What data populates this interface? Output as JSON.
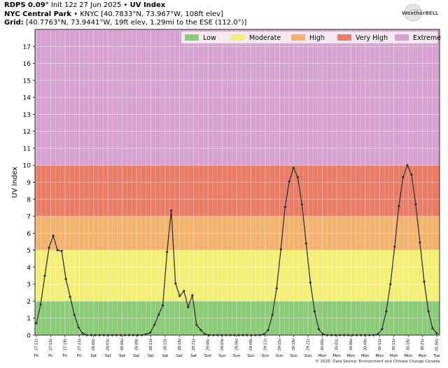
{
  "header": {
    "line1_model": "RDPS 0.09°",
    "line1_init": "Init 12z 27 Jun 2025",
    "line1_sep": "•",
    "line1_product": "UV Index",
    "line2_station": "NYC Central Park",
    "line2_detail": "• KNYC [40.7833°N, 73.967°W, 108ft elev]",
    "line3_label": "Grid:",
    "line3_detail": "[40.7763°N, 73.9441°W, 19ft elev, 1.29mi to the ESE (112.0°)]"
  },
  "logo": {
    "text": "WeatherBELL",
    "icon": "weatherbell-logo"
  },
  "credit": "© 2025. Data Source: Environment and Climate Change Canada.",
  "chart_data": {
    "type": "line",
    "ylabel": "UV Index",
    "ylim": [
      0,
      18
    ],
    "yticks": [
      0,
      1,
      2,
      3,
      4,
      5,
      6,
      7,
      8,
      9,
      10,
      11,
      12,
      13,
      14,
      15,
      16,
      17
    ],
    "grid": true,
    "legend_position": "top-right",
    "bands": [
      {
        "name": "Low",
        "from": 0,
        "to": 2,
        "color": "#8ccb78"
      },
      {
        "name": "Moderate",
        "from": 2,
        "to": 5,
        "color": "#f4ef76"
      },
      {
        "name": "High",
        "from": 5,
        "to": 7,
        "color": "#f2b36e"
      },
      {
        "name": "Very High",
        "from": 7,
        "to": 10,
        "color": "#ea7d66"
      },
      {
        "name": "Extreme",
        "from": 10,
        "to": 18,
        "color": "#d6a3d0"
      }
    ],
    "line_color": "#333333",
    "x_tick_labels": [
      [
        "27-12z",
        "Fri"
      ],
      [
        "27-15z",
        "Fri"
      ],
      [
        "27-18z",
        "Fri"
      ],
      [
        "27-21z",
        "Fri"
      ],
      [
        "28-00z",
        "Sat"
      ],
      [
        "28-03z",
        "Sat"
      ],
      [
        "28-06z",
        "Sat"
      ],
      [
        "28-09z",
        "Sat"
      ],
      [
        "28-12z",
        "Sat"
      ],
      [
        "28-15z",
        "Sat"
      ],
      [
        "28-18z",
        "Sat"
      ],
      [
        "28-21z",
        "Sat"
      ],
      [
        "29-00z",
        "Sun"
      ],
      [
        "29-03z",
        "Sun"
      ],
      [
        "29-06z",
        "Sun"
      ],
      [
        "29-09z",
        "Sun"
      ],
      [
        "29-12z",
        "Sun"
      ],
      [
        "29-15z",
        "Sun"
      ],
      [
        "29-18z",
        "Sun"
      ],
      [
        "29-21z",
        "Sun"
      ],
      [
        "30-00z",
        "Mon"
      ],
      [
        "30-03z",
        "Mon"
      ],
      [
        "30-06z",
        "Mon"
      ],
      [
        "30-09z",
        "Mon"
      ],
      [
        "30-12z",
        "Mon"
      ],
      [
        "30-15z",
        "Mon"
      ],
      [
        "30-18z",
        "Mon"
      ],
      [
        "30-21z",
        "Mon"
      ],
      [
        "01-00z",
        "Tue"
      ]
    ],
    "series": [
      {
        "values": [
          0.7,
          1.8,
          3.5,
          5.15,
          5.85,
          5.0,
          4.95,
          3.3,
          2.25,
          1.2,
          0.45,
          0.1,
          0,
          0,
          0,
          0,
          0,
          0,
          0,
          0,
          0,
          0,
          0,
          0,
          0,
          0,
          0.05,
          0.15,
          0.6,
          1.2,
          1.75,
          4.9,
          7.35,
          3.05,
          2.3,
          2.6,
          1.65,
          2.35,
          0.6,
          0.3,
          0.05,
          0,
          0,
          0,
          0,
          0,
          0,
          0,
          0,
          0,
          0,
          0,
          0,
          0,
          0.05,
          0.3,
          1.2,
          2.75,
          5.05,
          7.55,
          9.05,
          9.85,
          9.3,
          7.7,
          5.4,
          3.1,
          1.4,
          0.35,
          0.05,
          0,
          0,
          0,
          0,
          0,
          0,
          0,
          0,
          0,
          0,
          0,
          0,
          0.05,
          0.35,
          1.4,
          3.0,
          5.2,
          7.6,
          9.3,
          10.0,
          9.45,
          7.7,
          5.45,
          3.15,
          1.4,
          0.4,
          0.1
        ]
      }
    ]
  }
}
